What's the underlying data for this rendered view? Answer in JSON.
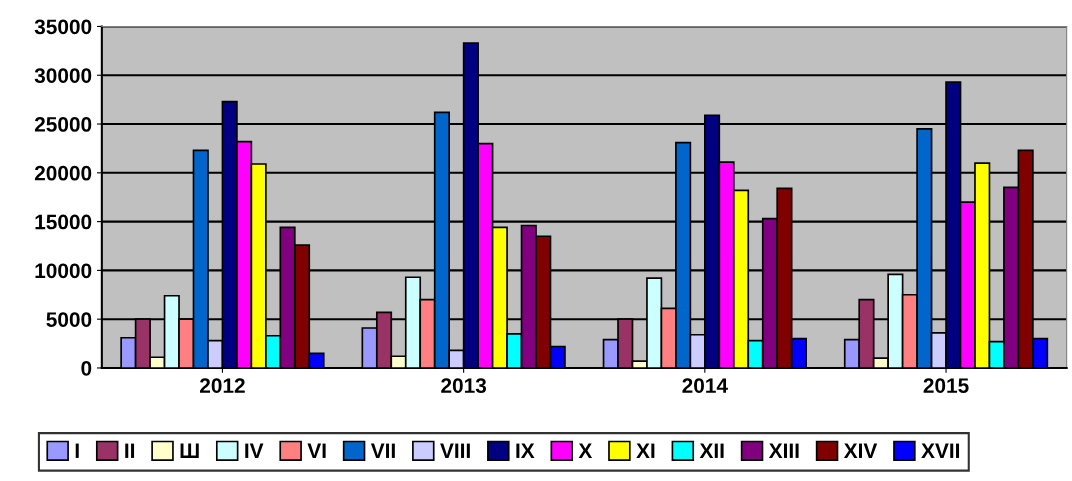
{
  "chart_data": {
    "type": "bar",
    "categories": [
      "2012",
      "2013",
      "2014",
      "2015"
    ],
    "ylim": [
      0,
      35000
    ],
    "yticks": [
      0,
      5000,
      10000,
      15000,
      20000,
      25000,
      30000,
      35000
    ],
    "grid": "y",
    "legend": "bottom",
    "series": [
      {
        "name": "I",
        "color": "#9999ff",
        "values": [
          3100,
          4100,
          2900,
          2900
        ]
      },
      {
        "name": "II",
        "color": "#993366",
        "values": [
          5000,
          5700,
          5000,
          7000
        ]
      },
      {
        "name": "Ш",
        "color": "#ffffcc",
        "values": [
          1100,
          1200,
          700,
          1000
        ]
      },
      {
        "name": "IV",
        "color": "#ccffff",
        "values": [
          7400,
          9300,
          9200,
          9600
        ]
      },
      {
        "name": "VI",
        "color": "#ff8080",
        "values": [
          5000,
          7000,
          6100,
          7500
        ]
      },
      {
        "name": "VII",
        "color": "#0066cc",
        "values": [
          22300,
          26200,
          23100,
          24500
        ]
      },
      {
        "name": "VIII",
        "color": "#ccccff",
        "values": [
          2800,
          1800,
          3400,
          3600
        ]
      },
      {
        "name": "IX",
        "color": "#000080",
        "values": [
          27300,
          33300,
          25900,
          29300
        ]
      },
      {
        "name": "X",
        "color": "#ff00ff",
        "values": [
          23200,
          23000,
          21100,
          17000
        ]
      },
      {
        "name": "XI",
        "color": "#ffff00",
        "values": [
          20900,
          14400,
          18200,
          21000
        ]
      },
      {
        "name": "XII",
        "color": "#00ffff",
        "values": [
          3300,
          3500,
          2800,
          2700
        ]
      },
      {
        "name": "XIII",
        "color": "#800080",
        "values": [
          14400,
          14600,
          15300,
          18500
        ]
      },
      {
        "name": "XIV",
        "color": "#800000",
        "values": [
          12600,
          13500,
          18400,
          22300
        ]
      },
      {
        "name": "XVII",
        "color": "#0000ff",
        "values": [
          1500,
          2200,
          3000,
          3000
        ]
      }
    ]
  }
}
